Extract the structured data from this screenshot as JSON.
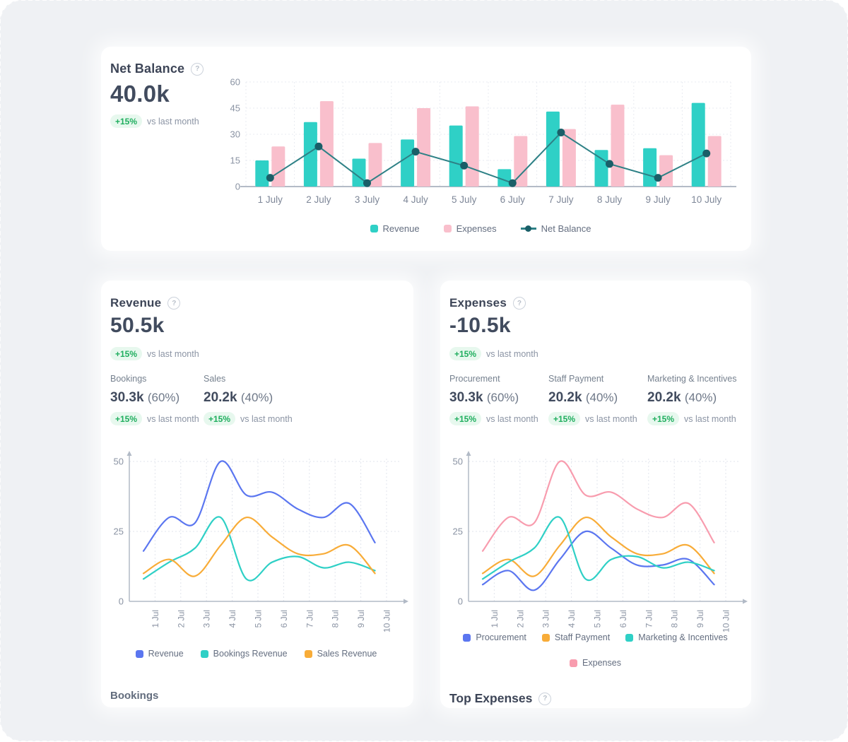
{
  "colors": {
    "background": "#eff1f4",
    "card": "#ffffff",
    "title": "#3d4557",
    "value": "#414b5e",
    "muted": "#8b94a4",
    "label": "#76818f",
    "share": "#6e7888",
    "badge_green": "#1fae5e",
    "badge_bg": "#e7f8ee",
    "axis_text": "#8a93a3",
    "legend_text": "#646e80"
  },
  "net_balance_card": {
    "title": "Net Balance",
    "value": "40.0k",
    "delta": "+15%",
    "delta_caption": "vs last month"
  },
  "revenue_card": {
    "title": "Revenue",
    "value": "50.5k",
    "delta": "+15%",
    "delta_caption": "vs last month",
    "breakdown": [
      {
        "label": "Bookings",
        "value": "30.3k",
        "share": "(60%)",
        "delta": "+15%",
        "delta_caption": "vs last month"
      },
      {
        "label": "Sales",
        "value": "20.2k",
        "share": "(40%)",
        "delta": "+15%",
        "delta_caption": "vs last month"
      }
    ],
    "footer_heading": "Bookings"
  },
  "expenses_card": {
    "title": "Expenses",
    "value": "-10.5k",
    "delta": "+15%",
    "delta_caption": "vs last month",
    "breakdown": [
      {
        "label": "Procurement",
        "value": "30.3k",
        "share": "(60%)",
        "delta": "+15%",
        "delta_caption": "vs last month"
      },
      {
        "label": "Staff Payment",
        "value": "20.2k",
        "share": "(40%)",
        "delta": "+15%",
        "delta_caption": "vs last month"
      },
      {
        "label": "Marketing & Incentives",
        "value": "20.2k",
        "share": "(40%)",
        "delta": "+15%",
        "delta_caption": "vs last month"
      }
    ],
    "footer_heading": "Top Expenses"
  },
  "chart_data": [
    {
      "id": "net_balance",
      "type": "bar",
      "title": "Net Balance by day",
      "categories": [
        "1 July",
        "2 July",
        "3 July",
        "4 July",
        "5 July",
        "6 July",
        "7 July",
        "8 July",
        "9 July",
        "10 July"
      ],
      "series": [
        {
          "name": "Revenue",
          "type": "bar",
          "color": "#2fd0c6",
          "values": [
            15,
            37,
            16,
            27,
            35,
            10,
            43,
            21,
            22,
            48
          ]
        },
        {
          "name": "Expenses",
          "type": "bar",
          "color": "#f9bfcc",
          "values": [
            23,
            49,
            25,
            45,
            46,
            29,
            33,
            47,
            18,
            29
          ]
        },
        {
          "name": "Net Balance",
          "type": "line",
          "color": "#1a5f68",
          "line_color": "#2e8186",
          "values": [
            5,
            23,
            2,
            20,
            12,
            2,
            31,
            13,
            5,
            19
          ]
        }
      ],
      "ylim": [
        0,
        60
      ],
      "yticks": [
        0,
        15,
        30,
        45,
        60
      ],
      "grid": true,
      "legend_position": "bottom"
    },
    {
      "id": "revenue",
      "type": "line",
      "title": "Revenue by day",
      "x_labels": [
        "1 Jul",
        "2 Jul",
        "3 Jul",
        "4 Jul",
        "5 Jul",
        "6 Jul",
        "7 Jul",
        "8 Jul",
        "9 Jul",
        "10 Jul"
      ],
      "series": [
        {
          "name": "Revenue",
          "color": "#5b76f0",
          "values": [
            18,
            30,
            28,
            50,
            38,
            39,
            33,
            30,
            35,
            21
          ]
        },
        {
          "name": "Bookings Revenue",
          "color": "#2fd0c6",
          "values": [
            8,
            14,
            19,
            30,
            8,
            14,
            16,
            12,
            14,
            11
          ]
        },
        {
          "name": "Sales Revenue",
          "color": "#f8ac38",
          "values": [
            10,
            15,
            9,
            20,
            30,
            23,
            17,
            17,
            20,
            10
          ]
        }
      ],
      "ylim": [
        0,
        50
      ],
      "yticks": [
        0,
        25,
        50
      ],
      "smooth": true,
      "x_label_rotation": -90,
      "legend_position": "bottom"
    },
    {
      "id": "expenses",
      "type": "line",
      "title": "Expenses by day",
      "x_labels": [
        "1 Jul",
        "2 Jul",
        "3 Jul",
        "4 Jul",
        "5 Jul",
        "6 Jul",
        "7 Jul",
        "8 Jul",
        "9 Jul",
        "10 Jul"
      ],
      "series": [
        {
          "name": "Procurement",
          "color": "#5b76f0",
          "values": [
            6,
            11,
            4,
            15,
            25,
            19,
            13,
            13,
            15,
            6
          ]
        },
        {
          "name": "Staff Payment",
          "color": "#f8ac38",
          "values": [
            10,
            15,
            9,
            20,
            30,
            23,
            17,
            17,
            20,
            10
          ]
        },
        {
          "name": "Marketing & Incentives",
          "color": "#2fd0c6",
          "values": [
            8,
            14,
            19,
            30,
            8,
            15,
            16,
            12,
            14,
            11
          ]
        },
        {
          "name": "Expenses",
          "color": "#f89cae",
          "values": [
            18,
            30,
            28,
            50,
            38,
            39,
            33,
            30,
            35,
            21
          ]
        }
      ],
      "ylim": [
        0,
        50
      ],
      "yticks": [
        0,
        25,
        50
      ],
      "smooth": true,
      "x_label_rotation": -90,
      "legend_position": "bottom"
    }
  ]
}
